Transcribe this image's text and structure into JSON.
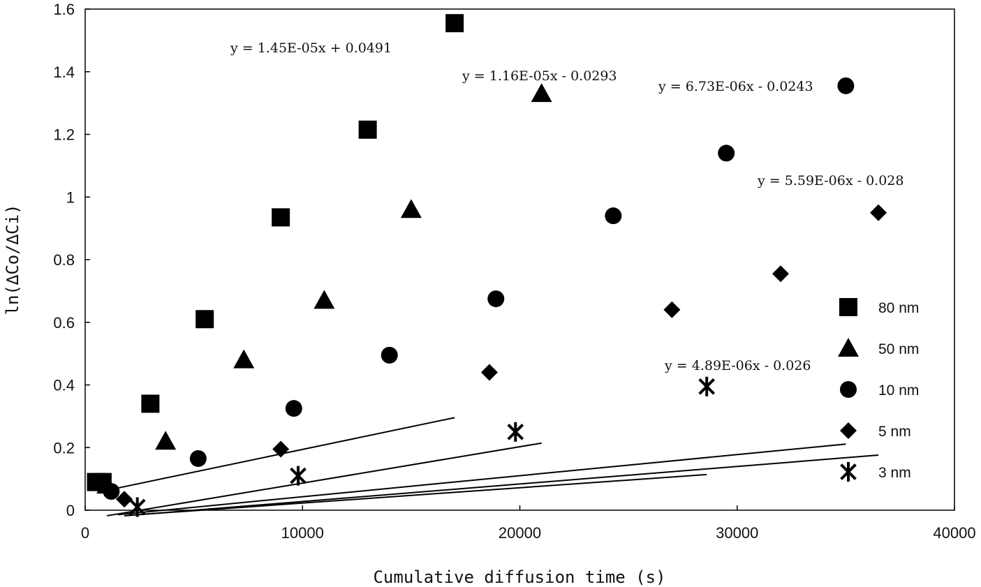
{
  "chart_data": {
    "type": "scatter",
    "title": "",
    "xlabel": "Cumulative diffusion time (s)",
    "ylabel": "ln(∆Co/∆Ci)",
    "xlim": [
      0,
      40000
    ],
    "ylim": [
      0,
      1.6
    ],
    "x_ticks": [
      0,
      10000,
      20000,
      30000,
      40000
    ],
    "x_tick_labels": [
      "0",
      "10000",
      "20000",
      "30000",
      "40000"
    ],
    "y_ticks": [
      0,
      0.2,
      0.4,
      0.6,
      0.8,
      1,
      1.2,
      1.4,
      1.6
    ],
    "y_tick_labels": [
      "0",
      "0.2",
      "0.4",
      "0.6",
      "0.8",
      "1",
      "1.2",
      "1.4",
      "1.6"
    ],
    "grid": false,
    "legend_position": "right",
    "series": [
      {
        "name": "80 nm",
        "marker": "square",
        "x": [
          500,
          800,
          3000,
          5500,
          9000,
          13000,
          17000
        ],
        "y": [
          0.09,
          0.09,
          0.34,
          0.61,
          0.935,
          1.215,
          1.555
        ],
        "fit": {
          "equation": "y = 1.45E-05x + 0.0491",
          "slope": 1.45e-05,
          "intercept": 0.0491,
          "x_range": [
            600,
            17000
          ]
        }
      },
      {
        "name": "50 nm",
        "marker": "triangle",
        "x": [
          1000,
          3700,
          7300,
          11000,
          15000,
          21000
        ],
        "y": [
          0.08,
          0.22,
          0.48,
          0.67,
          0.96,
          1.33
        ],
        "fit": {
          "equation": "y = 1.16E-05x - 0.0293",
          "slope": 1.16e-05,
          "intercept": -0.0293,
          "x_range": [
            1000,
            21000
          ]
        }
      },
      {
        "name": "10 nm",
        "marker": "circle",
        "x": [
          1200,
          5200,
          9600,
          14000,
          18900,
          24300,
          29500,
          35000
        ],
        "y": [
          0.06,
          0.165,
          0.325,
          0.495,
          0.675,
          0.94,
          1.14,
          1.355
        ],
        "fit": {
          "equation": "y = 6.73E-06x - 0.0243",
          "slope": 6.73e-06,
          "intercept": -0.0243,
          "x_range": [
            1500,
            35000
          ]
        }
      },
      {
        "name": "5 nm",
        "marker": "diamond",
        "x": [
          1800,
          9000,
          18600,
          27000,
          32000,
          36500
        ],
        "y": [
          0.035,
          0.195,
          0.44,
          0.64,
          0.755,
          0.95
        ],
        "fit": {
          "equation": "y = 5.59E-06x - 0.028",
          "slope": 5.59e-06,
          "intercept": -0.028,
          "x_range": [
            1800,
            36500
          ]
        }
      },
      {
        "name": "3 nm",
        "marker": "star",
        "x": [
          2400,
          9800,
          19800,
          28600
        ],
        "y": [
          0.01,
          0.11,
          0.25,
          0.395
        ],
        "fit": {
          "equation": "y = 4.89E-06x - 0.026",
          "slope": 4.89e-06,
          "intercept": -0.026,
          "x_range": [
            2000,
            28600
          ]
        }
      }
    ]
  }
}
